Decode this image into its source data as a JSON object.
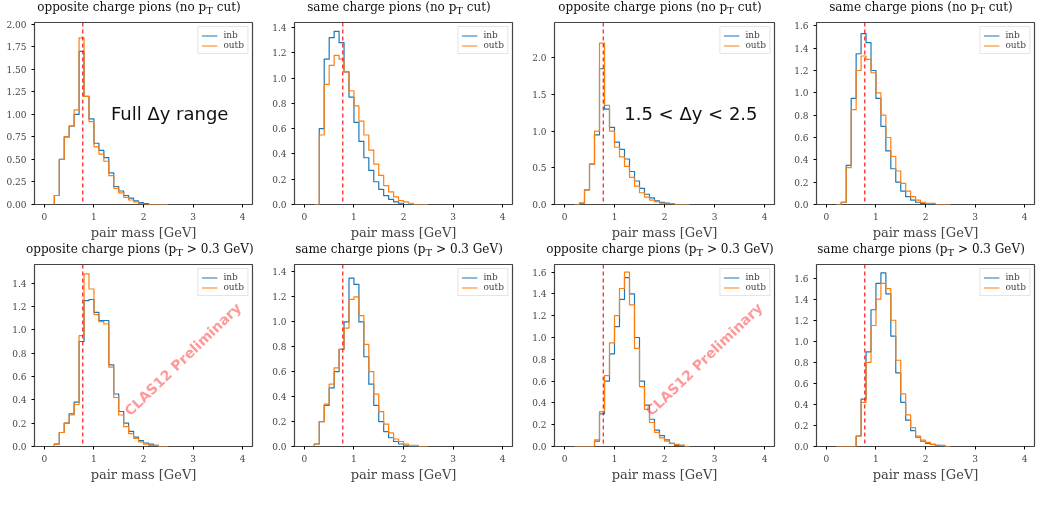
{
  "chart_data": [
    {
      "type": "histogram",
      "title": "opposite charge pions (no p$_{T}$ cut)",
      "xlabel": "pair mass [GeV]",
      "xlim": [
        -0.2,
        4.2
      ],
      "xticks": [
        0,
        1,
        2,
        3,
        4
      ],
      "ylim": [
        0,
        2.02
      ],
      "yticks": [
        {
          "value": 0,
          "label": "0.00"
        },
        {
          "value": 0.25,
          "label": "0.25"
        },
        {
          "value": 0.5,
          "label": "0.50"
        },
        {
          "value": 0.75,
          "label": "0.75"
        },
        {
          "value": 1,
          "label": "1.00"
        },
        {
          "value": 1.25,
          "label": "1.25"
        },
        {
          "value": 1.5,
          "label": "1.50"
        },
        {
          "value": 1.75,
          "label": "1.75"
        },
        {
          "value": 2,
          "label": "2.00"
        }
      ],
      "legend": "top right",
      "ref_lines": [
        {
          "axis": "x",
          "value": 0.775,
          "color": "#ff0000",
          "line_style": "dashed"
        }
      ],
      "annotations": [
        "Full Δy range"
      ],
      "bins": [
        0.2,
        0.3,
        0.4,
        0.5,
        0.6,
        0.7,
        0.8,
        0.9,
        1.0,
        1.1,
        1.2,
        1.3,
        1.4,
        1.5,
        1.6,
        1.7,
        1.8,
        1.9,
        2.0,
        2.1,
        2.2,
        2.3,
        2.4,
        2.5
      ],
      "series": [
        {
          "name": "inb",
          "color": "#1f77b4",
          "values": [
            0.1,
            0.5,
            0.75,
            0.87,
            1.0,
            1.7,
            1.2,
            0.95,
            0.68,
            0.6,
            0.52,
            0.35,
            0.2,
            0.15,
            0.1,
            0.07,
            0.04,
            0.02,
            0.01,
            0,
            0,
            0,
            0
          ]
        },
        {
          "name": "outb",
          "color": "#ff7f0e",
          "values": [
            0.1,
            0.5,
            0.75,
            0.87,
            1.05,
            1.85,
            1.2,
            0.92,
            0.64,
            0.56,
            0.48,
            0.32,
            0.18,
            0.13,
            0.08,
            0.05,
            0.03,
            0.01,
            0,
            0,
            0,
            0,
            0
          ]
        }
      ]
    },
    {
      "type": "histogram",
      "title": "same charge pions (no p$_{T}$ cut)",
      "xlabel": "pair mass [GeV]",
      "xlim": [
        -0.2,
        4.2
      ],
      "xticks": [
        0,
        1,
        2,
        3,
        4
      ],
      "ylim": [
        0,
        1.44
      ],
      "yticks": [
        {
          "value": 0,
          "label": "0.0"
        },
        {
          "value": 0.2,
          "label": "0.2"
        },
        {
          "value": 0.4,
          "label": "0.4"
        },
        {
          "value": 0.6,
          "label": "0.6"
        },
        {
          "value": 0.8,
          "label": "0.8"
        },
        {
          "value": 1,
          "label": "1.0"
        },
        {
          "value": 1.2,
          "label": "1.2"
        },
        {
          "value": 1.4,
          "label": "1.4"
        }
      ],
      "legend": "top right",
      "ref_lines": [
        {
          "axis": "x",
          "value": 0.775,
          "color": "#ff0000",
          "line_style": "dashed"
        }
      ],
      "bins": [
        0.2,
        0.3,
        0.4,
        0.5,
        0.6,
        0.7,
        0.8,
        0.9,
        1.0,
        1.1,
        1.2,
        1.3,
        1.4,
        1.5,
        1.6,
        1.7,
        1.8,
        1.9,
        2.0,
        2.1,
        2.2,
        2.3,
        2.4,
        2.5
      ],
      "series": [
        {
          "name": "inb",
          "color": "#1f77b4",
          "values": [
            0,
            0.6,
            1.15,
            1.32,
            1.37,
            1.28,
            1.05,
            0.85,
            0.65,
            0.5,
            0.37,
            0.27,
            0.18,
            0.12,
            0.07,
            0.04,
            0.02,
            0.01,
            0,
            0,
            0,
            0,
            0
          ]
        },
        {
          "name": "outb",
          "color": "#ff7f0e",
          "values": [
            0,
            0.55,
            0.95,
            1.1,
            1.18,
            1.15,
            1.05,
            0.9,
            0.78,
            0.66,
            0.55,
            0.43,
            0.32,
            0.23,
            0.15,
            0.1,
            0.06,
            0.03,
            0.02,
            0.01,
            0,
            0,
            0
          ]
        }
      ]
    },
    {
      "type": "histogram",
      "title": "opposite charge pions (no p$_{T}$ cut)",
      "xlabel": "pair mass [GeV]",
      "xlim": [
        -0.2,
        4.2
      ],
      "xticks": [
        0,
        1,
        2,
        3,
        4
      ],
      "ylim": [
        0,
        2.48
      ],
      "yticks": [
        {
          "value": 0,
          "label": "0.0"
        },
        {
          "value": 0.5,
          "label": "0.5"
        },
        {
          "value": 1,
          "label": "1.0"
        },
        {
          "value": 1.5,
          "label": "1.5"
        },
        {
          "value": 2,
          "label": "2.0"
        }
      ],
      "legend": "top right",
      "ref_lines": [
        {
          "axis": "x",
          "value": 0.775,
          "color": "#ff0000",
          "line_style": "dashed"
        }
      ],
      "annotations": [
        "1.5 < Δy < 2.5"
      ],
      "bins": [
        0.2,
        0.3,
        0.4,
        0.5,
        0.6,
        0.7,
        0.8,
        0.9,
        1.0,
        1.1,
        1.2,
        1.3,
        1.4,
        1.5,
        1.6,
        1.7,
        1.8,
        1.9,
        2.0,
        2.1,
        2.2,
        2.3,
        2.4,
        2.5
      ],
      "series": [
        {
          "name": "inb",
          "color": "#1f77b4",
          "values": [
            0,
            0.02,
            0.2,
            0.55,
            0.95,
            1.85,
            1.3,
            1.05,
            0.85,
            0.75,
            0.62,
            0.45,
            0.32,
            0.22,
            0.14,
            0.09,
            0.05,
            0.03,
            0.02,
            0.01,
            0,
            0,
            0
          ]
        },
        {
          "name": "outb",
          "color": "#ff7f0e",
          "values": [
            0,
            0.02,
            0.2,
            0.55,
            1.0,
            2.2,
            1.35,
            1.0,
            0.78,
            0.65,
            0.52,
            0.37,
            0.25,
            0.16,
            0.1,
            0.06,
            0.04,
            0.02,
            0.01,
            0.01,
            0,
            0,
            0
          ]
        }
      ]
    },
    {
      "type": "histogram",
      "title": "same charge pions (no p$_{T}$ cut)",
      "xlabel": "pair mass [GeV]",
      "xlim": [
        -0.2,
        4.2
      ],
      "xticks": [
        0,
        1,
        2,
        3,
        4
      ],
      "ylim": [
        0,
        1.63
      ],
      "yticks": [
        {
          "value": 0,
          "label": "0.0"
        },
        {
          "value": 0.2,
          "label": "0.2"
        },
        {
          "value": 0.4,
          "label": "0.4"
        },
        {
          "value": 0.6,
          "label": "0.6"
        },
        {
          "value": 0.8,
          "label": "0.8"
        },
        {
          "value": 1,
          "label": "1.0"
        },
        {
          "value": 1.2,
          "label": "1.2"
        },
        {
          "value": 1.4,
          "label": "1.4"
        },
        {
          "value": 1.6,
          "label": "1.6"
        }
      ],
      "legend": "top right",
      "ref_lines": [
        {
          "axis": "x",
          "value": 0.775,
          "color": "#ff0000",
          "line_style": "dashed"
        }
      ],
      "bins": [
        0.2,
        0.3,
        0.4,
        0.5,
        0.6,
        0.7,
        0.8,
        0.9,
        1.0,
        1.1,
        1.2,
        1.3,
        1.4,
        1.5,
        1.6,
        1.7,
        1.8,
        1.9,
        2.0,
        2.1,
        2.2,
        2.3,
        2.4,
        2.5
      ],
      "series": [
        {
          "name": "inb",
          "color": "#1f77b4",
          "values": [
            0,
            0.02,
            0.35,
            0.95,
            1.35,
            1.53,
            1.45,
            1.2,
            0.95,
            0.7,
            0.48,
            0.32,
            0.2,
            0.12,
            0.07,
            0.04,
            0.02,
            0.01,
            0,
            0,
            0,
            0,
            0
          ]
        },
        {
          "name": "outb",
          "color": "#ff7f0e",
          "values": [
            0,
            0.02,
            0.33,
            0.85,
            1.2,
            1.33,
            1.3,
            1.18,
            1.0,
            0.8,
            0.6,
            0.43,
            0.3,
            0.19,
            0.12,
            0.07,
            0.04,
            0.02,
            0.01,
            0.01,
            0,
            0,
            0
          ]
        }
      ]
    },
    {
      "type": "histogram",
      "title": "opposite charge pions (p$_{T}$ > 0.3 GeV)",
      "xlabel": "pair mass [GeV]",
      "xlim": [
        -0.2,
        4.2
      ],
      "xticks": [
        0,
        1,
        2,
        3,
        4
      ],
      "ylim": [
        0,
        1.56
      ],
      "yticks": [
        {
          "value": 0,
          "label": "0.0"
        },
        {
          "value": 0.2,
          "label": "0.2"
        },
        {
          "value": 0.4,
          "label": "0.4"
        },
        {
          "value": 0.6,
          "label": "0.6"
        },
        {
          "value": 0.8,
          "label": "0.8"
        },
        {
          "value": 1,
          "label": "1.0"
        },
        {
          "value": 1.2,
          "label": "1.2"
        },
        {
          "value": 1.4,
          "label": "1.4"
        }
      ],
      "legend": "top right",
      "ref_lines": [
        {
          "axis": "x",
          "value": 0.775,
          "color": "#ff0000",
          "line_style": "dashed"
        }
      ],
      "annotations": [
        "CLAS12 Preliminary"
      ],
      "bins": [
        0.2,
        0.3,
        0.4,
        0.5,
        0.6,
        0.7,
        0.8,
        0.9,
        1.0,
        1.1,
        1.2,
        1.3,
        1.4,
        1.5,
        1.6,
        1.7,
        1.8,
        1.9,
        2.0,
        2.1,
        2.2,
        2.3,
        2.4,
        2.5
      ],
      "series": [
        {
          "name": "inb",
          "color": "#1f77b4",
          "values": [
            0.02,
            0.12,
            0.2,
            0.28,
            0.38,
            0.9,
            1.25,
            1.26,
            1.15,
            1.08,
            1.08,
            0.7,
            0.45,
            0.3,
            0.2,
            0.13,
            0.08,
            0.05,
            0.03,
            0.02,
            0.01,
            0,
            0
          ]
        },
        {
          "name": "outb",
          "color": "#ff7f0e",
          "values": [
            0.02,
            0.12,
            0.2,
            0.27,
            0.36,
            0.95,
            1.48,
            1.35,
            1.13,
            1.07,
            1.05,
            0.68,
            0.42,
            0.27,
            0.17,
            0.11,
            0.07,
            0.04,
            0.02,
            0.01,
            0.01,
            0,
            0
          ]
        }
      ]
    },
    {
      "type": "histogram",
      "title": "same charge pions (p$_{T}$ > 0.3 GeV)",
      "xlabel": "pair mass [GeV]",
      "xlim": [
        -0.2,
        4.2
      ],
      "xticks": [
        0,
        1,
        2,
        3,
        4
      ],
      "ylim": [
        0,
        1.46
      ],
      "yticks": [
        {
          "value": 0,
          "label": "0.0"
        },
        {
          "value": 0.2,
          "label": "0.2"
        },
        {
          "value": 0.4,
          "label": "0.4"
        },
        {
          "value": 0.6,
          "label": "0.6"
        },
        {
          "value": 0.8,
          "label": "0.8"
        },
        {
          "value": 1,
          "label": "1.0"
        },
        {
          "value": 1.2,
          "label": "1.2"
        },
        {
          "value": 1.4,
          "label": "1.4"
        }
      ],
      "legend": "top right",
      "ref_lines": [
        {
          "axis": "x",
          "value": 0.775,
          "color": "#ff0000",
          "line_style": "dashed"
        }
      ],
      "bins": [
        0.2,
        0.3,
        0.4,
        0.5,
        0.6,
        0.7,
        0.8,
        0.9,
        1.0,
        1.1,
        1.2,
        1.3,
        1.4,
        1.5,
        1.6,
        1.7,
        1.8,
        1.9,
        2.0,
        2.1,
        2.2,
        2.3,
        2.4,
        2.5
      ],
      "series": [
        {
          "name": "inb",
          "color": "#1f77b4",
          "values": [
            0.02,
            0.2,
            0.33,
            0.47,
            0.6,
            0.78,
            1.0,
            1.35,
            1.3,
            1.0,
            0.72,
            0.5,
            0.33,
            0.2,
            0.12,
            0.07,
            0.04,
            0.02,
            0.01,
            0,
            0,
            0,
            0
          ]
        },
        {
          "name": "outb",
          "color": "#ff7f0e",
          "values": [
            0.02,
            0.2,
            0.34,
            0.5,
            0.63,
            0.78,
            0.95,
            1.18,
            1.2,
            1.05,
            0.82,
            0.6,
            0.42,
            0.28,
            0.18,
            0.11,
            0.06,
            0.04,
            0.02,
            0.01,
            0.01,
            0,
            0
          ]
        }
      ]
    },
    {
      "type": "histogram",
      "title": "opposite charge pions (p$_{T}$ > 0.3 GeV)",
      "xlabel": "pair mass [GeV]",
      "xlim": [
        -0.2,
        4.2
      ],
      "xticks": [
        0,
        1,
        2,
        3,
        4
      ],
      "ylim": [
        0,
        1.67
      ],
      "yticks": [
        {
          "value": 0,
          "label": "0.0"
        },
        {
          "value": 0.2,
          "label": "0.2"
        },
        {
          "value": 0.4,
          "label": "0.4"
        },
        {
          "value": 0.6,
          "label": "0.6"
        },
        {
          "value": 0.8,
          "label": "0.8"
        },
        {
          "value": 1,
          "label": "1.0"
        },
        {
          "value": 1.2,
          "label": "1.2"
        },
        {
          "value": 1.4,
          "label": "1.4"
        },
        {
          "value": 1.6,
          "label": "1.6"
        }
      ],
      "legend": "top right",
      "ref_lines": [
        {
          "axis": "x",
          "value": 0.775,
          "color": "#ff0000",
          "line_style": "dashed"
        }
      ],
      "annotations": [
        "CLAS12 Preliminary"
      ],
      "bins": [
        0.2,
        0.3,
        0.4,
        0.5,
        0.6,
        0.7,
        0.8,
        0.9,
        1.0,
        1.1,
        1.2,
        1.3,
        1.4,
        1.5,
        1.6,
        1.7,
        1.8,
        1.9,
        2.0,
        2.1,
        2.2,
        2.3,
        2.4,
        2.5
      ],
      "series": [
        {
          "name": "inb",
          "color": "#1f77b4",
          "values": [
            0,
            0,
            0,
            0,
            0.05,
            0.3,
            0.6,
            0.85,
            1.1,
            1.35,
            1.55,
            1.4,
            1.0,
            0.6,
            0.38,
            0.25,
            0.15,
            0.1,
            0.06,
            0.03,
            0.01,
            0.01,
            0
          ]
        },
        {
          "name": "outb",
          "color": "#ff7f0e",
          "values": [
            0,
            0,
            0,
            0,
            0.06,
            0.32,
            0.65,
            0.95,
            1.2,
            1.45,
            1.6,
            1.3,
            0.9,
            0.55,
            0.34,
            0.22,
            0.13,
            0.08,
            0.05,
            0.03,
            0.02,
            0.01,
            0
          ]
        }
      ]
    },
    {
      "type": "histogram",
      "title": "same charge pions (p$_{T}$ > 0.3 GeV)",
      "xlabel": "pair mass [GeV]",
      "xlim": [
        -0.2,
        4.2
      ],
      "xticks": [
        0,
        1,
        2,
        3,
        4
      ],
      "ylim": [
        0,
        1.73
      ],
      "yticks": [
        {
          "value": 0,
          "label": "0.0"
        },
        {
          "value": 0.2,
          "label": "0.2"
        },
        {
          "value": 0.4,
          "label": "0.4"
        },
        {
          "value": 0.6,
          "label": "0.6"
        },
        {
          "value": 0.8,
          "label": "0.8"
        },
        {
          "value": 1,
          "label": "1.0"
        },
        {
          "value": 1.2,
          "label": "1.2"
        },
        {
          "value": 1.4,
          "label": "1.4"
        },
        {
          "value": 1.6,
          "label": "1.6"
        }
      ],
      "legend": "top right",
      "ref_lines": [
        {
          "axis": "x",
          "value": 0.775,
          "color": "#ff0000",
          "line_style": "dashed"
        }
      ],
      "bins": [
        0.2,
        0.3,
        0.4,
        0.5,
        0.6,
        0.7,
        0.8,
        0.9,
        1.0,
        1.1,
        1.2,
        1.3,
        1.4,
        1.5,
        1.6,
        1.7,
        1.8,
        1.9,
        2.0,
        2.1,
        2.2,
        2.3,
        2.4,
        2.5
      ],
      "series": [
        {
          "name": "inb",
          "color": "#1f77b4",
          "values": [
            0,
            0,
            0,
            0,
            0.1,
            0.45,
            0.9,
            1.3,
            1.55,
            1.65,
            1.45,
            1.05,
            0.7,
            0.42,
            0.25,
            0.15,
            0.09,
            0.05,
            0.03,
            0.02,
            0.01,
            0,
            0
          ]
        },
        {
          "name": "outb",
          "color": "#ff7f0e",
          "values": [
            0,
            0,
            0,
            0,
            0.1,
            0.42,
            0.8,
            1.15,
            1.4,
            1.55,
            1.5,
            1.2,
            0.82,
            0.5,
            0.3,
            0.18,
            0.1,
            0.06,
            0.04,
            0.02,
            0.01,
            0.01,
            0
          ]
        }
      ]
    }
  ]
}
